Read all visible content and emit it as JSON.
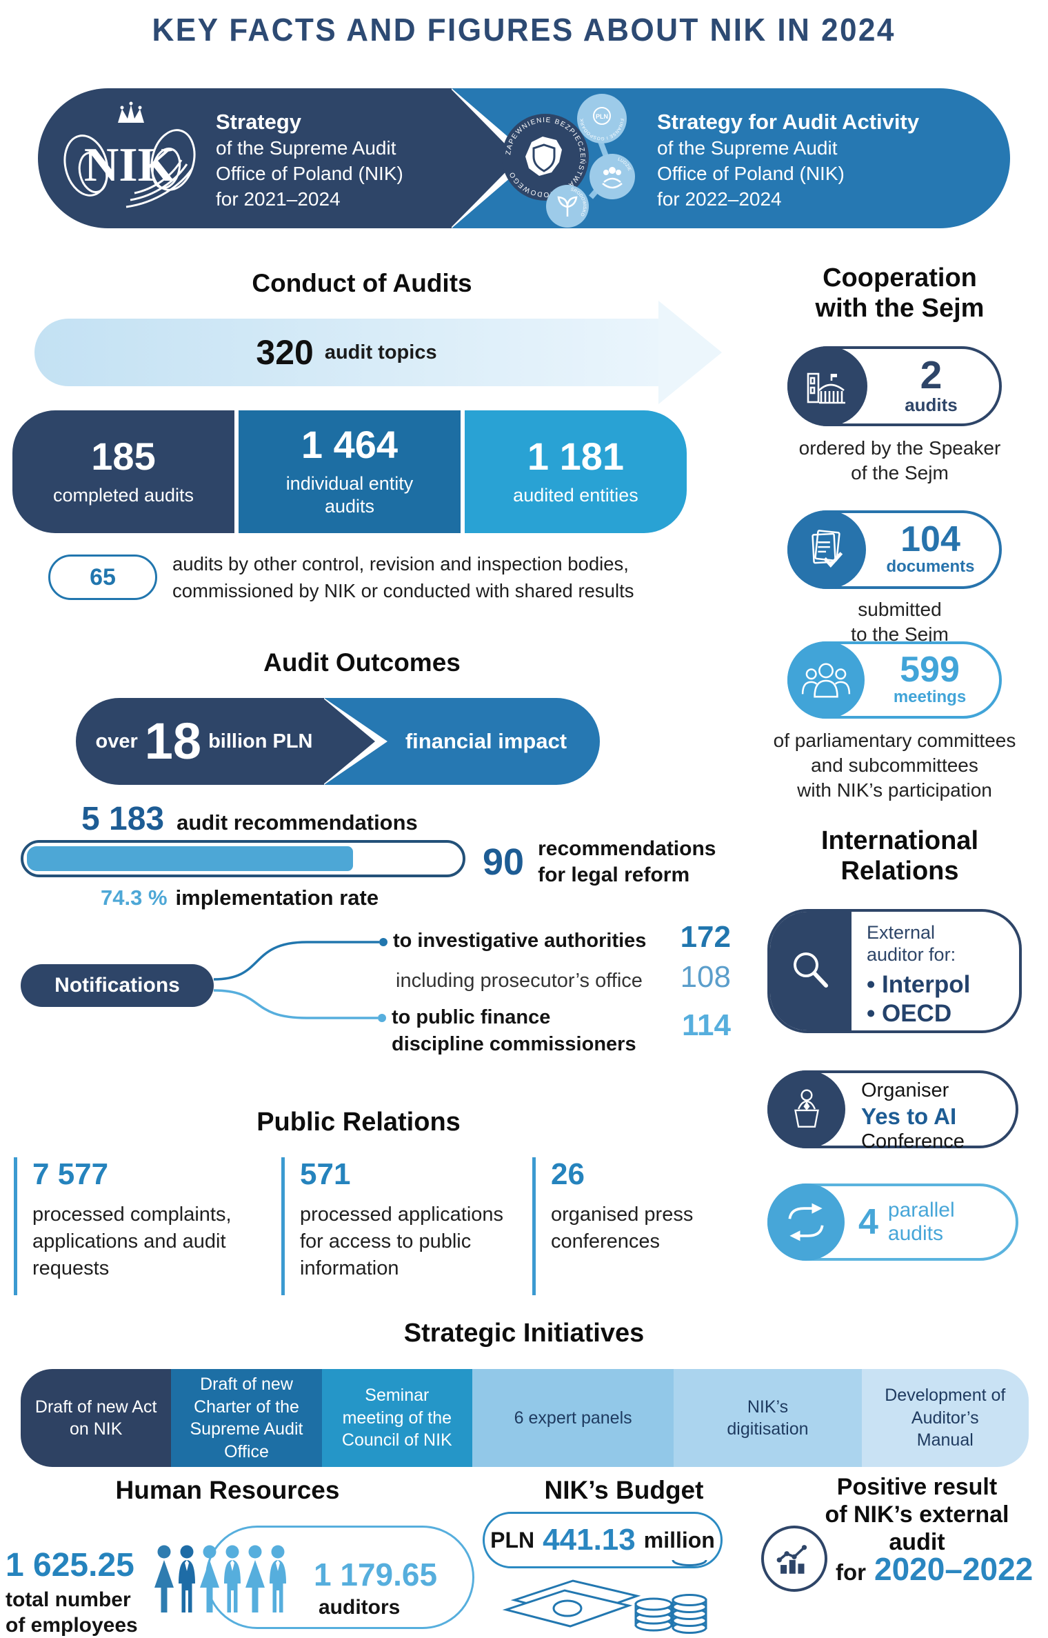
{
  "title": "KEY FACTS AND FIGURES ABOUT NIK IN 2024",
  "colors": {
    "navy": "#2e4568",
    "blue": "#2678b2",
    "mid_blue": "#1d6ea3",
    "cyan": "#29a2d4",
    "light_blue": "#56aedd",
    "accent_blue": "#2583bd",
    "dark_number_blue": "#1d5c94"
  },
  "banner": {
    "left": {
      "heading": "Strategy",
      "line1": "of the Supreme Audit",
      "line2": "Office of Poland (NIK)",
      "line3": "for 2021–2024"
    },
    "right": {
      "heading": "Strategy for Audit Activity",
      "line1": "of the Supreme Audit",
      "line2": "Office of Poland (NIK)",
      "line3": "for 2022–2024"
    },
    "badge": {
      "ring": "ZAPEWNIENIE BEZPIECZEŃSTWA NARODOWEGO",
      "bubble1": "FINANSE I GOSPODARKA",
      "bubble2": "LUDZIE",
      "bubble3": "ŚRODOWISKO",
      "pln": "PLN"
    }
  },
  "conduct": {
    "heading": "Conduct of Audits",
    "topics_value": "320",
    "topics_label": "audit topics",
    "boxes": [
      {
        "value": "185",
        "label": "completed audits"
      },
      {
        "value": "1 464",
        "label": "individual entity audits"
      },
      {
        "value": "1 181",
        "label": "audited entities"
      }
    ],
    "other": {
      "value": "65",
      "line1": "audits by other control, revision and inspection bodies,",
      "line2": "commissioned by NIK or conducted with shared results"
    }
  },
  "sejm": {
    "heading1": "Cooperation",
    "heading2": "with the Sejm",
    "audits": {
      "value": "2",
      "unit": "audits",
      "caption1": "ordered by the Speaker",
      "caption2": "of the Sejm"
    },
    "documents": {
      "value": "104",
      "unit": "documents",
      "caption1": "submitted",
      "caption2": "to the Sejm"
    },
    "meetings": {
      "value": "599",
      "unit": "meetings",
      "caption1": "of parliamentary committees",
      "caption2": "and subcommittees",
      "caption3": "with NIK’s participation"
    }
  },
  "outcomes": {
    "heading": "Audit Outcomes",
    "impact_prefix": "over",
    "impact_value": "18",
    "impact_suffix": "billion PLN",
    "impact_label": "financial impact",
    "recs_value": "5 183",
    "recs_label": "audit recommendations",
    "impl_value": "74.3 %",
    "impl_label": "implementation rate",
    "impl_percent": 74.3,
    "legal_value": "90",
    "legal_line1": "recommendations",
    "legal_line2": "for legal reform",
    "notifications": {
      "label": "Notifications",
      "row1_label": "to investigative authorities",
      "row1_value": "172",
      "row2_label": "including prosecutor’s office",
      "row2_value": "108",
      "row3_line1": "to public finance",
      "row3_line2": "discipline commissioners",
      "row3_value": "114"
    }
  },
  "pr": {
    "heading": "Public Relations",
    "items": [
      {
        "value": "7 577",
        "label": "processed complaints, applications and audit requests"
      },
      {
        "value": "571",
        "label": "processed applications for access to public information"
      },
      {
        "value": "26",
        "label": "organised press conferences"
      }
    ]
  },
  "international": {
    "heading1": "International",
    "heading2": "Relations",
    "auditor": {
      "line1": "External",
      "line2": "auditor for:",
      "item1": "• Interpol",
      "item2": "• OECD"
    },
    "conference": {
      "line1": "Organiser",
      "line2": "Yes to AI",
      "line3": "Conference"
    },
    "parallel": {
      "value": "4",
      "line1": "parallel",
      "line2": "audits"
    }
  },
  "strategic": {
    "heading": "Strategic Initiatives",
    "items": [
      "Draft of new Act on NIK",
      "Draft of new Charter of the Supreme Audit Office",
      "Seminar meeting of the Council of NIK",
      "6 expert panels",
      "NIK’s digitisation",
      "Development of Auditor’s Manual"
    ]
  },
  "hr": {
    "heading": "Human Resources",
    "employees_value": "1 625.25",
    "employees_line1": "total number",
    "employees_line2": "of employees",
    "auditors_value": "1 179.65",
    "auditors_label": "auditors"
  },
  "budget": {
    "heading": "NIK’s Budget",
    "prefix": "PLN",
    "value": "441.13",
    "suffix": "million"
  },
  "external_audit": {
    "line1": "Positive result",
    "line2": "of NIK’s external",
    "line3": "audit",
    "prefix": "for",
    "value": "2020–2022"
  }
}
